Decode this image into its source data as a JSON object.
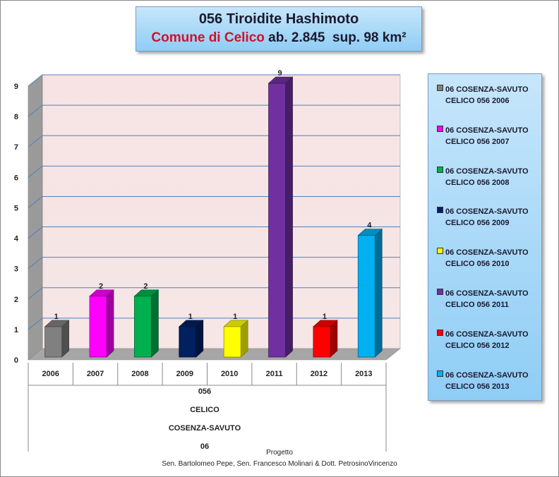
{
  "title": "056 Tiroidite Hashimoto",
  "subtitle": {
    "comune": "Comune di Celico",
    "abitanti": "ab. 2.845",
    "superficie": "sup. 98 km²"
  },
  "chart_data": {
    "type": "bar",
    "categories": [
      "2006",
      "2007",
      "2008",
      "2009",
      "2010",
      "2011",
      "2012",
      "2013"
    ],
    "values": [
      1,
      2,
      2,
      1,
      1,
      9,
      1,
      4
    ],
    "colors": [
      "#808080",
      "#ff00ff",
      "#00b050",
      "#002060",
      "#ffff00",
      "#7030a0",
      "#ff0000",
      "#00b0f0"
    ],
    "ylim": [
      0,
      9
    ],
    "yticks": [
      "0",
      "1",
      "2",
      "3",
      "4",
      "5",
      "6",
      "7",
      "8",
      "9"
    ],
    "grid": true,
    "legend_position": "right",
    "legend": [
      {
        "line1": "06 COSENZA-SAVUTO",
        "line2": "CELICO 056 2006"
      },
      {
        "line1": "06 COSENZA-SAVUTO",
        "line2": "CELICO 056 2007"
      },
      {
        "line1": "06 COSENZA-SAVUTO",
        "line2": "CELICO 056 2008"
      },
      {
        "line1": "06 COSENZA-SAVUTO",
        "line2": "CELICO 056 2009"
      },
      {
        "line1": "06 COSENZA-SAVUTO",
        "line2": "CELICO 056 2010"
      },
      {
        "line1": "06 COSENZA-SAVUTO",
        "line2": "CELICO 056 2011"
      },
      {
        "line1": "06 COSENZA-SAVUTO",
        "line2": "CELICO 056 2012"
      },
      {
        "line1": "06 COSENZA-SAVUTO",
        "line2": "CELICO 056 2013"
      }
    ],
    "group_labels": [
      "056",
      "CELICO",
      "COSENZA-SAVUTO",
      "06"
    ]
  },
  "footer": {
    "line1": "Progetto",
    "line2": "Sen. Bartolomeo Pepe, Sen. Francesco Molinari  & Dott. PetrosinoVincenzo"
  }
}
